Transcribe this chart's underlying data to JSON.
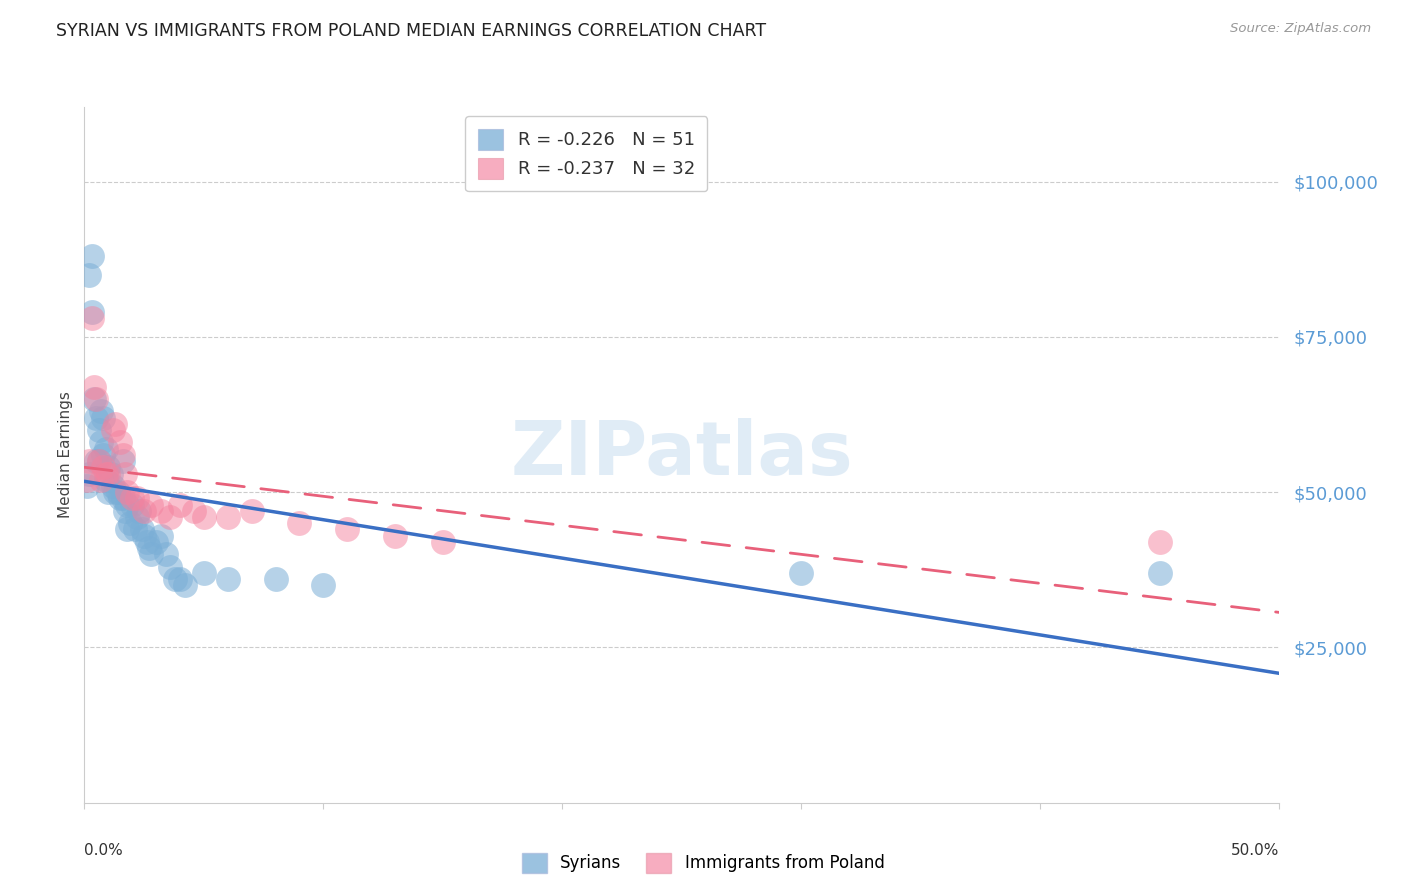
{
  "title": "SYRIAN VS IMMIGRANTS FROM POLAND MEDIAN EARNINGS CORRELATION CHART",
  "source": "Source: ZipAtlas.com",
  "ylabel": "Median Earnings",
  "watermark": "ZIPatlas",
  "xlim": [
    0.0,
    0.5
  ],
  "ylim": [
    0,
    112000
  ],
  "yticks": [
    25000,
    50000,
    75000,
    100000
  ],
  "ytick_labels": [
    "$25,000",
    "$50,000",
    "$75,000",
    "$100,000"
  ],
  "blue_color": "#7aaed6",
  "pink_color": "#f4829e",
  "blue_line_color": "#3a6fc4",
  "pink_line_color": "#e8607a",
  "tick_label_color": "#5b9bd5",
  "syrians_x": [
    0.001,
    0.002,
    0.002,
    0.003,
    0.003,
    0.004,
    0.005,
    0.005,
    0.006,
    0.006,
    0.007,
    0.007,
    0.008,
    0.008,
    0.009,
    0.009,
    0.01,
    0.01,
    0.011,
    0.012,
    0.013,
    0.014,
    0.015,
    0.016,
    0.016,
    0.017,
    0.018,
    0.018,
    0.019,
    0.02,
    0.021,
    0.022,
    0.023,
    0.024,
    0.025,
    0.026,
    0.027,
    0.028,
    0.03,
    0.032,
    0.034,
    0.036,
    0.038,
    0.04,
    0.042,
    0.05,
    0.06,
    0.08,
    0.1,
    0.3,
    0.45
  ],
  "syrians_y": [
    51000,
    53000,
    85000,
    88000,
    79000,
    65000,
    62000,
    55000,
    60000,
    55000,
    63000,
    58000,
    62000,
    56000,
    57000,
    52000,
    54000,
    50000,
    53000,
    51000,
    50000,
    50000,
    49000,
    49000,
    55000,
    47000,
    48000,
    44000,
    45000,
    48000,
    44000,
    46000,
    47000,
    44000,
    43000,
    42000,
    41000,
    40000,
    42000,
    43000,
    40000,
    38000,
    36000,
    36000,
    35000,
    37000,
    36000,
    36000,
    35000,
    37000,
    37000
  ],
  "poland_x": [
    0.001,
    0.002,
    0.003,
    0.004,
    0.005,
    0.006,
    0.007,
    0.008,
    0.009,
    0.01,
    0.012,
    0.013,
    0.015,
    0.016,
    0.017,
    0.018,
    0.02,
    0.022,
    0.025,
    0.028,
    0.032,
    0.036,
    0.04,
    0.046,
    0.05,
    0.06,
    0.07,
    0.09,
    0.11,
    0.13,
    0.15,
    0.45
  ],
  "poland_y": [
    52000,
    55000,
    78000,
    67000,
    65000,
    55000,
    52000,
    54000,
    53000,
    53000,
    60000,
    61000,
    58000,
    56000,
    53000,
    50000,
    49000,
    49000,
    47000,
    48000,
    47000,
    46000,
    48000,
    47000,
    46000,
    46000,
    47000,
    45000,
    44000,
    43000,
    42000,
    42000
  ]
}
